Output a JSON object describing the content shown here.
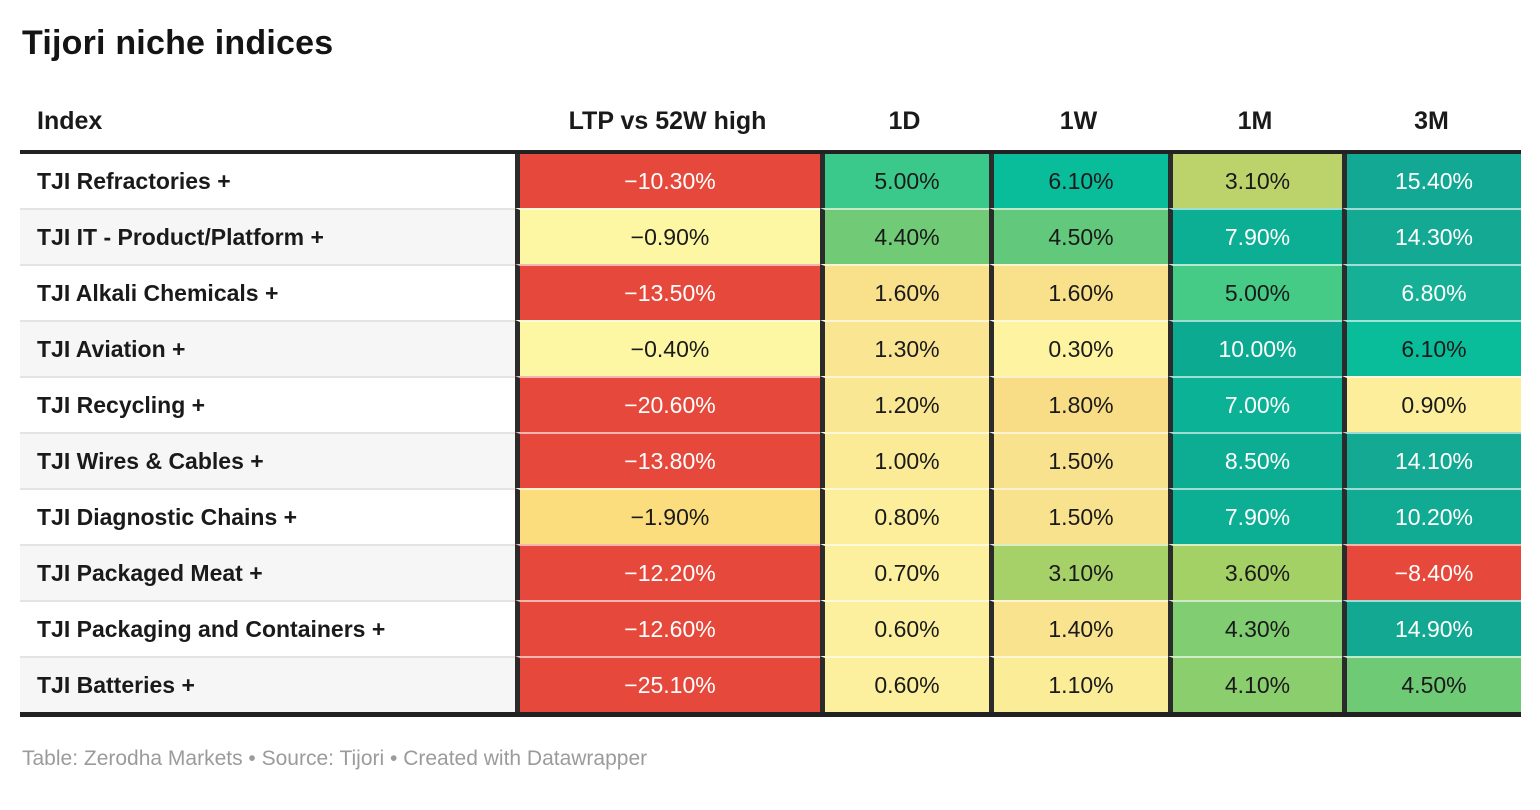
{
  "title": "Tijori niche indices",
  "footer": {
    "text": "Table: Zerodha Markets • Source: Tijori • Created with Datawrapper"
  },
  "accent_colors": {
    "negative_red": "#e6493c",
    "pale_yellow": "#fdf6a2",
    "amber": "#fcdd7e",
    "green": "#3bc98b",
    "teal": "#0caf94",
    "header_border": "#222222"
  },
  "table": {
    "columns": [
      {
        "label": "Index"
      },
      {
        "label": "LTP vs 52W high"
      },
      {
        "label": "1D"
      },
      {
        "label": "1W"
      },
      {
        "label": "1M"
      },
      {
        "label": "3M"
      }
    ],
    "rows": [
      {
        "index": "TJI Refractories +",
        "cells": [
          {
            "v": "−10.30%",
            "bg": "#e6493c",
            "fg": "#ffffff"
          },
          {
            "v": "5.00%",
            "bg": "#3bc98b",
            "fg": "#1a1a1a"
          },
          {
            "v": "6.10%",
            "bg": "#0abd9a",
            "fg": "#1a1a1a"
          },
          {
            "v": "3.10%",
            "bg": "#bcd36c",
            "fg": "#1a1a1a"
          },
          {
            "v": "15.40%",
            "bg": "#13a893",
            "fg": "#ffffff"
          }
        ]
      },
      {
        "index": "TJI IT - Product/Platform +",
        "cells": [
          {
            "v": "−0.90%",
            "bg": "#fdf6a2",
            "fg": "#1a1a1a"
          },
          {
            "v": "4.40%",
            "bg": "#70ca76",
            "fg": "#1a1a1a"
          },
          {
            "v": "4.50%",
            "bg": "#62c87b",
            "fg": "#1a1a1a"
          },
          {
            "v": "7.90%",
            "bg": "#0caf94",
            "fg": "#ffffff"
          },
          {
            "v": "14.30%",
            "bg": "#13a993",
            "fg": "#ffffff"
          }
        ]
      },
      {
        "index": "TJI Alkali Chemicals +",
        "cells": [
          {
            "v": "−13.50%",
            "bg": "#e6493c",
            "fg": "#ffffff"
          },
          {
            "v": "1.60%",
            "bg": "#f9e08a",
            "fg": "#1a1a1a"
          },
          {
            "v": "1.60%",
            "bg": "#f9e08a",
            "fg": "#1a1a1a"
          },
          {
            "v": "5.00%",
            "bg": "#45cb86",
            "fg": "#1a1a1a"
          },
          {
            "v": "6.80%",
            "bg": "#15b096",
            "fg": "#ffffff"
          }
        ]
      },
      {
        "index": "TJI Aviation +",
        "cells": [
          {
            "v": "−0.40%",
            "bg": "#fdf6a2",
            "fg": "#1a1a1a"
          },
          {
            "v": "1.30%",
            "bg": "#fae692",
            "fg": "#1a1a1a"
          },
          {
            "v": "0.30%",
            "bg": "#fdf3a0",
            "fg": "#1a1a1a"
          },
          {
            "v": "10.00%",
            "bg": "#0baa91",
            "fg": "#ffffff"
          },
          {
            "v": "6.10%",
            "bg": "#0abd9a",
            "fg": "#1a1a1a"
          }
        ]
      },
      {
        "index": "TJI Recycling +",
        "cells": [
          {
            "v": "−20.60%",
            "bg": "#e6493c",
            "fg": "#ffffff"
          },
          {
            "v": "1.20%",
            "bg": "#fae794",
            "fg": "#1a1a1a"
          },
          {
            "v": "1.80%",
            "bg": "#f8dd86",
            "fg": "#1a1a1a"
          },
          {
            "v": "7.00%",
            "bg": "#0cb296",
            "fg": "#ffffff"
          },
          {
            "v": "0.90%",
            "bg": "#fdee9b",
            "fg": "#1a1a1a"
          }
        ]
      },
      {
        "index": "TJI Wires & Cables +",
        "cells": [
          {
            "v": "−13.80%",
            "bg": "#e6493c",
            "fg": "#ffffff"
          },
          {
            "v": "1.00%",
            "bg": "#fbea96",
            "fg": "#1a1a1a"
          },
          {
            "v": "1.50%",
            "bg": "#f9e28d",
            "fg": "#1a1a1a"
          },
          {
            "v": "8.50%",
            "bg": "#0cad93",
            "fg": "#ffffff"
          },
          {
            "v": "14.10%",
            "bg": "#13a993",
            "fg": "#ffffff"
          }
        ]
      },
      {
        "index": "TJI Diagnostic Chains +",
        "cells": [
          {
            "v": "−1.90%",
            "bg": "#fcdd7e",
            "fg": "#1a1a1a"
          },
          {
            "v": "0.80%",
            "bg": "#fcee9b",
            "fg": "#1a1a1a"
          },
          {
            "v": "1.50%",
            "bg": "#f9e28d",
            "fg": "#1a1a1a"
          },
          {
            "v": "7.90%",
            "bg": "#0caf94",
            "fg": "#ffffff"
          },
          {
            "v": "10.20%",
            "bg": "#11aa92",
            "fg": "#ffffff"
          }
        ]
      },
      {
        "index": "TJI Packaged Meat +",
        "cells": [
          {
            "v": "−12.20%",
            "bg": "#e6493c",
            "fg": "#ffffff"
          },
          {
            "v": "0.70%",
            "bg": "#fcef9d",
            "fg": "#1a1a1a"
          },
          {
            "v": "3.10%",
            "bg": "#a6d169",
            "fg": "#1a1a1a"
          },
          {
            "v": "3.60%",
            "bg": "#a4d165",
            "fg": "#1a1a1a"
          },
          {
            "v": "−8.40%",
            "bg": "#e6493c",
            "fg": "#ffffff"
          }
        ]
      },
      {
        "index": "TJI Packaging and Containers +",
        "cells": [
          {
            "v": "−12.60%",
            "bg": "#e6493c",
            "fg": "#ffffff"
          },
          {
            "v": "0.60%",
            "bg": "#fcf09e",
            "fg": "#1a1a1a"
          },
          {
            "v": "1.40%",
            "bg": "#fae38f",
            "fg": "#1a1a1a"
          },
          {
            "v": "4.30%",
            "bg": "#80cd72",
            "fg": "#1a1a1a"
          },
          {
            "v": "14.90%",
            "bg": "#12a892",
            "fg": "#ffffff"
          }
        ]
      },
      {
        "index": "TJI Batteries +",
        "cells": [
          {
            "v": "−25.10%",
            "bg": "#e6493c",
            "fg": "#ffffff"
          },
          {
            "v": "0.60%",
            "bg": "#fcf09e",
            "fg": "#1a1a1a"
          },
          {
            "v": "1.10%",
            "bg": "#fbec98",
            "fg": "#1a1a1a"
          },
          {
            "v": "4.10%",
            "bg": "#8bce6e",
            "fg": "#1a1a1a"
          },
          {
            "v": "4.50%",
            "bg": "#6fca76",
            "fg": "#1a1a1a"
          }
        ]
      }
    ]
  },
  "chart_data": {
    "type": "table",
    "title": "Tijori niche indices",
    "columns": [
      "Index",
      "LTP vs 52W high",
      "1D",
      "1W",
      "1M",
      "3M"
    ],
    "rows": [
      [
        "TJI Refractories +",
        -10.3,
        5.0,
        6.1,
        3.1,
        15.4
      ],
      [
        "TJI IT - Product/Platform +",
        -0.9,
        4.4,
        4.5,
        7.9,
        14.3
      ],
      [
        "TJI Alkali Chemicals +",
        -13.5,
        1.6,
        1.6,
        5.0,
        6.8
      ],
      [
        "TJI Aviation +",
        -0.4,
        1.3,
        0.3,
        10.0,
        6.1
      ],
      [
        "TJI Recycling +",
        -20.6,
        1.2,
        1.8,
        7.0,
        0.9
      ],
      [
        "TJI Wires & Cables +",
        -13.8,
        1.0,
        1.5,
        8.5,
        14.1
      ],
      [
        "TJI Diagnostic Chains +",
        -1.9,
        0.8,
        1.5,
        7.9,
        10.2
      ],
      [
        "TJI Packaged Meat +",
        -12.2,
        0.7,
        3.1,
        3.6,
        -8.4
      ],
      [
        "TJI Packaging and Containers +",
        -12.6,
        0.6,
        1.4,
        4.3,
        14.9
      ],
      [
        "TJI Batteries +",
        -25.1,
        0.6,
        1.1,
        4.1,
        4.5
      ]
    ],
    "units": "percent",
    "color_encoding": "red-yellow-green heatmap on value cells",
    "source_line": "Table: Zerodha Markets • Source: Tijori • Created with Datawrapper"
  }
}
